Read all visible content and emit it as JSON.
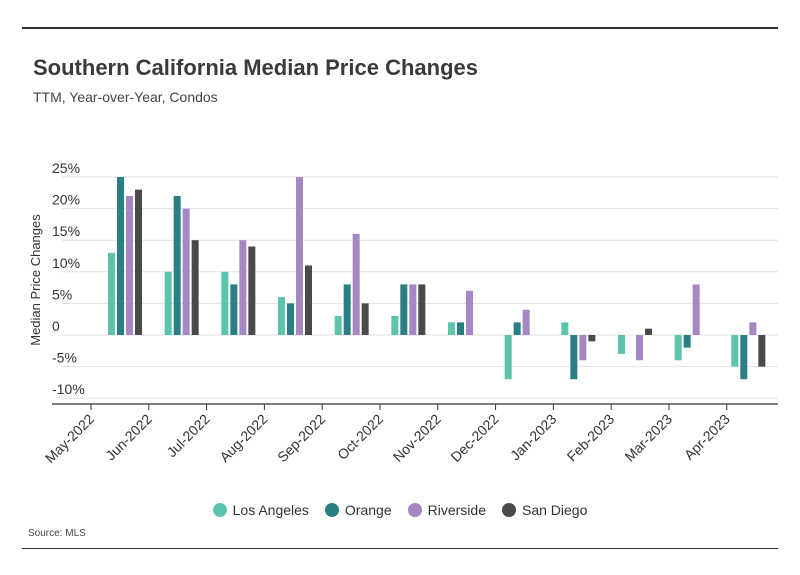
{
  "title": "Southern California Median Price Changes",
  "subtitle": "TTM, Year-over-Year, Condos",
  "source": "Source: MLS",
  "chart_data": {
    "type": "bar",
    "ylabel": "Median Price Changes",
    "ylim": [
      -12,
      25
    ],
    "yticks": [
      25,
      20,
      15,
      10,
      5,
      0,
      -5,
      -10
    ],
    "ytick_labels": [
      "25%",
      "20%",
      "15%",
      "10%",
      "5%",
      "0",
      "-5%",
      "-10%"
    ],
    "categories": [
      "May-2022",
      "Jun-2022",
      "Jul-2022",
      "Aug-2022",
      "Sep-2022",
      "Oct-2022",
      "Nov-2022",
      "Dec-2022",
      "Jan-2023",
      "Feb-2023",
      "Mar-2023",
      "Apr-2023"
    ],
    "series": [
      {
        "name": "Los Angeles",
        "color": "#5cc3ad",
        "values": [
          13,
          10,
          10,
          6,
          3,
          3,
          2,
          -7,
          2,
          -3,
          -4,
          -5
        ]
      },
      {
        "name": "Orange",
        "color": "#2a7f86",
        "values": [
          25,
          22,
          8,
          5,
          8,
          8,
          2,
          2,
          -7,
          0,
          -2,
          -7
        ]
      },
      {
        "name": "Riverside",
        "color": "#a487c3",
        "values": [
          22,
          20,
          15,
          25,
          16,
          8,
          7,
          4,
          -4,
          -4,
          8,
          2
        ]
      },
      {
        "name": "San Diego",
        "color": "#4a4a4a",
        "values": [
          23,
          15,
          14,
          11,
          5,
          8,
          0,
          0,
          -1,
          1,
          0,
          -5
        ]
      }
    ],
    "grid": true,
    "legend_position": "bottom"
  }
}
